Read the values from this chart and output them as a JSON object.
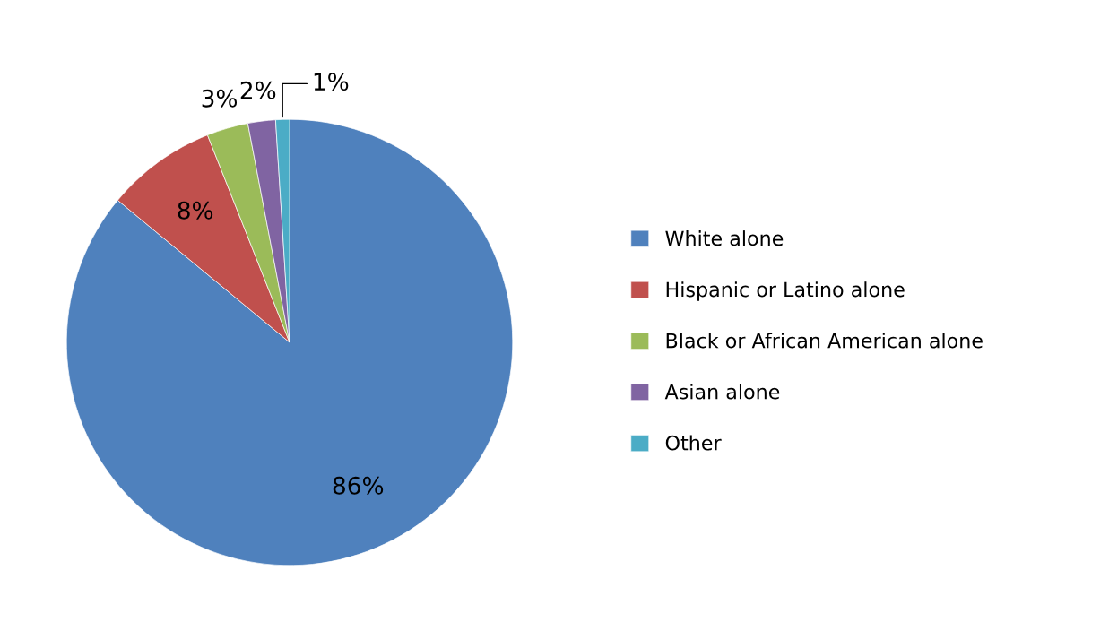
{
  "chart_data": {
    "type": "pie",
    "categories": [
      "White alone",
      "Hispanic or Latino alone",
      "Black or African American alone",
      "Asian alone",
      "Other"
    ],
    "values": [
      86,
      8,
      3,
      2,
      1
    ],
    "colors": [
      "#4f81bd",
      "#c0504d",
      "#9bbb59",
      "#8064a2",
      "#4bacc6"
    ],
    "value_labels": [
      "86%",
      "8%",
      "3%",
      "2%",
      "1%"
    ],
    "legend": "right"
  }
}
